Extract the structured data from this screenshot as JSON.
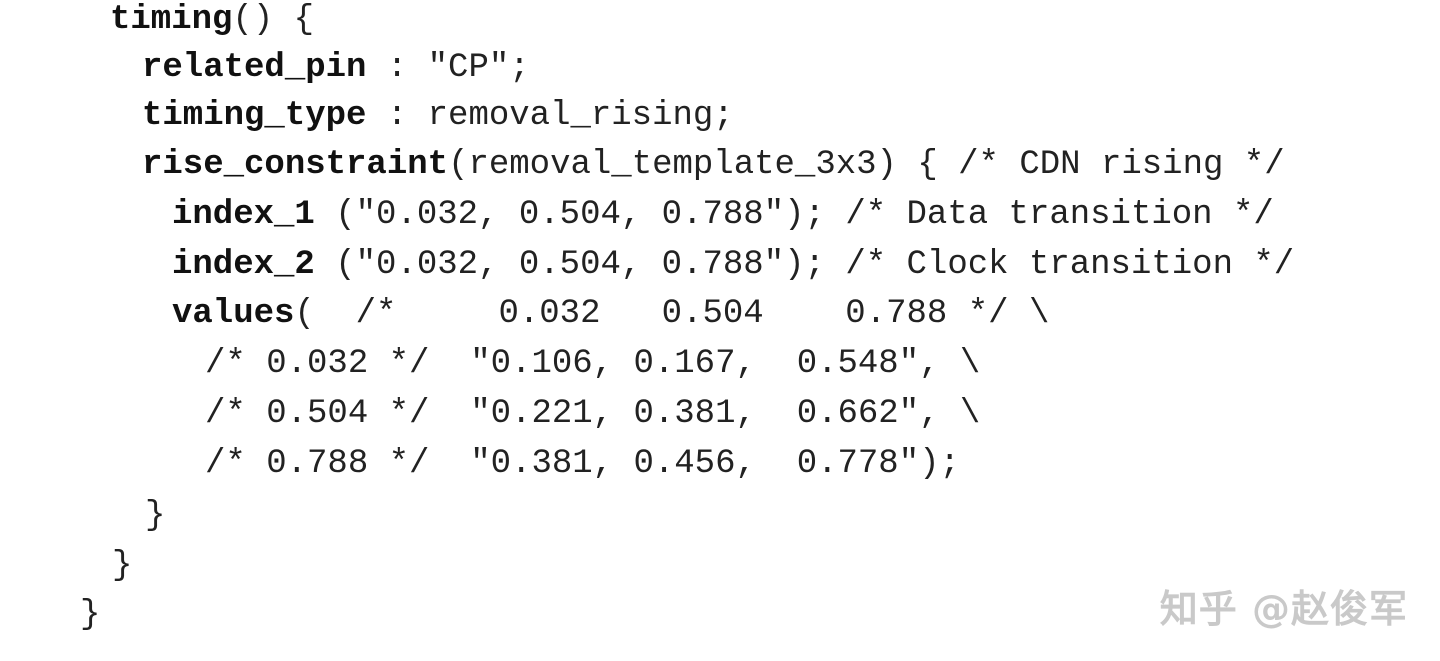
{
  "code": {
    "l1": {
      "kw": "timing",
      "rest": "() {"
    },
    "l2": {
      "kw": "related_pin",
      "rest": " : \"CP\";"
    },
    "l3": {
      "kw": "timing_type",
      "rest": " : removal_rising;"
    },
    "l4": {
      "kw": "rise_constraint",
      "rest": "(removal_template_3x3) { /* CDN rising */"
    },
    "l5": {
      "kw": "index_1",
      "rest": " (\"0.032, 0.504, 0.788\"); /* Data transition */"
    },
    "l6": {
      "kw": "index_2",
      "rest": " (\"0.032, 0.504, 0.788\"); /* Clock transition */"
    },
    "l7": {
      "kw": "values",
      "rest": "(  /*     0.032   0.504    0.788 */ \\"
    },
    "l8": {
      "text": "/* 0.032 */  \"0.106, 0.167,  0.548\", \\"
    },
    "l9": {
      "text": "/* 0.504 */  \"0.221, 0.381,  0.662\", \\"
    },
    "l10": {
      "text": "/* 0.788 */  \"0.381, 0.456,  0.778\");"
    },
    "l11": {
      "text": "}"
    },
    "l12": {
      "text": "}"
    },
    "l13": {
      "text": "}"
    }
  },
  "watermark": "知乎 @赵俊军"
}
